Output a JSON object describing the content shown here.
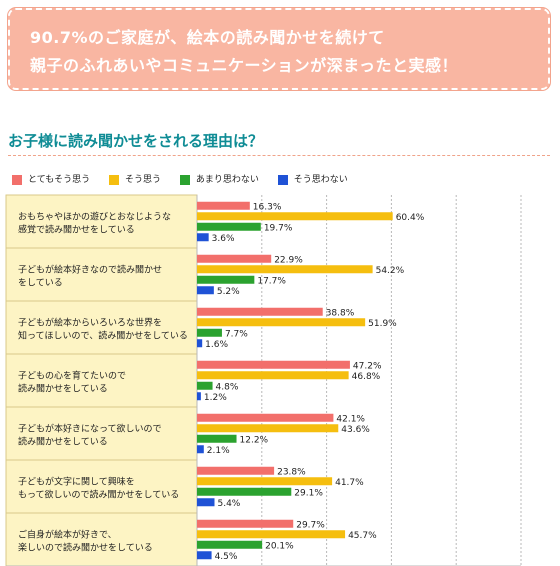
{
  "banner": {
    "line1": "90.7%のご家庭が、絵本の読み聞かせを続けて",
    "line2": "親子のふれあいやコミュニケーションが深まったと実感！"
  },
  "section": {
    "question": "お子様に読み聞かせをされる理由は？"
  },
  "colors": {
    "banner_bg": "#f9b6a2",
    "question_text": "#0f8c95",
    "row_bg": "#fdf4c4"
  },
  "chart_data": {
    "type": "bar",
    "orientation": "horizontal",
    "series": [
      {
        "name": "とてもそう思う",
        "color": "#f26f6b",
        "values": [
          16.3,
          22.9,
          38.8,
          47.2,
          42.1,
          23.8,
          29.7
        ]
      },
      {
        "name": "そう思う",
        "color": "#f5be0f",
        "values": [
          60.4,
          54.2,
          51.9,
          46.8,
          43.6,
          41.7,
          45.7
        ]
      },
      {
        "name": "あまり思わない",
        "color": "#2ba22f",
        "values": [
          19.7,
          17.7,
          7.7,
          4.8,
          12.2,
          29.1,
          20.1
        ]
      },
      {
        "name": "そう思わない",
        "color": "#1f52d6",
        "values": [
          3.6,
          5.2,
          1.6,
          1.2,
          2.1,
          5.4,
          4.5
        ]
      }
    ],
    "categories": [
      [
        "おもちゃやほかの遊びとおなじような",
        "感覚で読み聞かせをしている"
      ],
      [
        "子どもが絵本好きなので読み聞かせ",
        "をしている"
      ],
      [
        "子どもが絵本からいろいろな世界を",
        "知ってほしいので、読み聞かせをしている"
      ],
      [
        "子どもの心を育てたいので",
        "読み聞かせをしている"
      ],
      [
        "子どもが本好きになって欲しいので",
        "読み聞かせをしている"
      ],
      [
        "子どもが文字に関して興味を",
        "もって欲しいので読み聞かせをしている"
      ],
      [
        "ご自身が絵本が好きで、",
        "楽しいので読み聞かせをしている"
      ]
    ],
    "value_labels": [
      [
        "16.3%",
        "60.4%",
        "19.7%",
        "3.6%"
      ],
      [
        "22.9%",
        "54.2%",
        "17.7%",
        "5.2%"
      ],
      [
        "38.8%",
        "51.9%",
        "7.7%",
        "1.6%"
      ],
      [
        "47.2%",
        "46.8%",
        "4.8%",
        "1.2%"
      ],
      [
        "42.1%",
        "43.6%",
        "12.2%",
        "2.1%"
      ],
      [
        "23.8%",
        "41.7%",
        "29.1%",
        "5.4%"
      ],
      [
        "29.7%",
        "45.7%",
        "20.1%",
        "4.5%"
      ]
    ],
    "x_ticks": [
      "0%",
      "20%",
      "40%",
      "60%",
      "80%",
      "100%"
    ],
    "xlim": [
      0,
      100
    ],
    "grid": true,
    "legend_position": "top-left"
  }
}
